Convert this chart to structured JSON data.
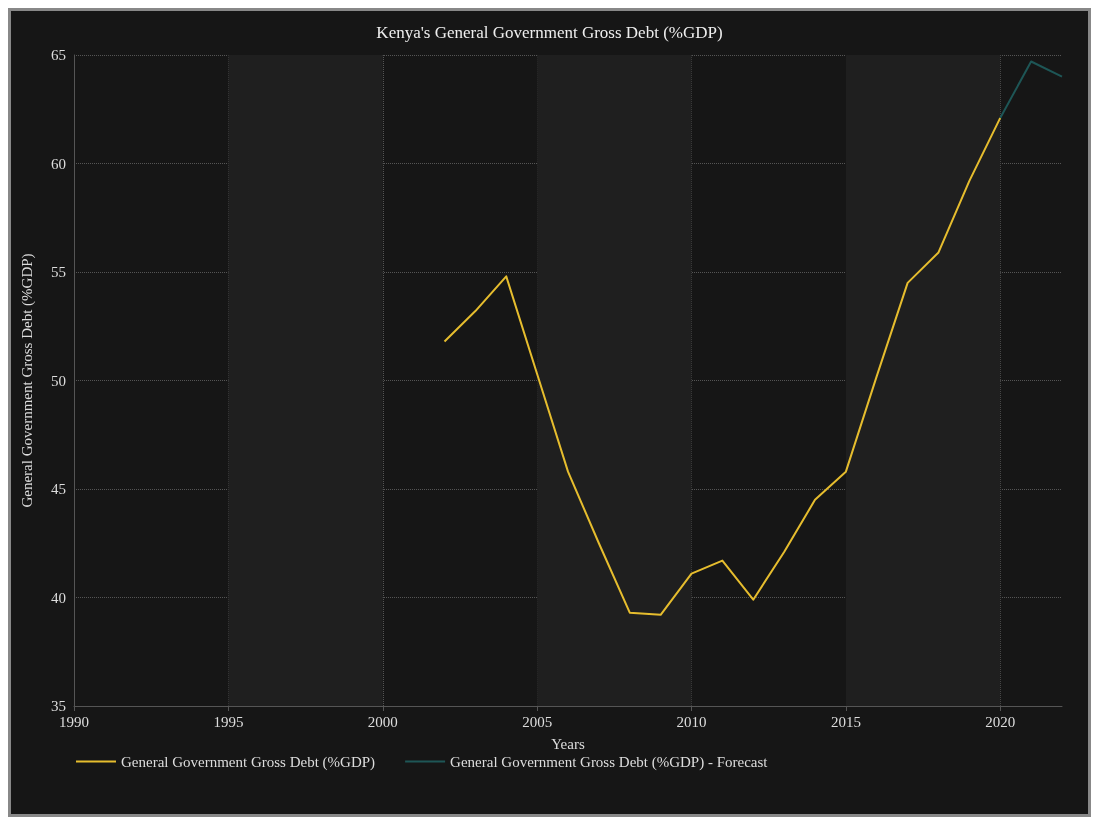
{
  "chart_data": {
    "type": "line",
    "title": "Kenya's General Government Gross Debt (%GDP)",
    "xlabel": "Years",
    "ylabel": "General Government Gross Debt (%GDP)",
    "series": [
      {
        "name": "General Government Gross Debt (%GDP)",
        "color": "#e6bd2e",
        "x": [
          2002,
          2003,
          2004,
          2005,
          2006,
          2007,
          2008,
          2009,
          2010,
          2011,
          2012,
          2013,
          2014,
          2015,
          2016,
          2017,
          2018,
          2019,
          2020
        ],
        "values": [
          51.8,
          53.2,
          54.8,
          50.3,
          45.8,
          42.5,
          39.3,
          39.2,
          41.1,
          41.7,
          39.9,
          42.1,
          44.5,
          45.8,
          50.2,
          54.5,
          55.9,
          59.2,
          62.1
        ]
      },
      {
        "name": "General Government Gross Debt (%GDP) - Forecast",
        "color": "#1e5656",
        "x": [
          2020,
          2021,
          2022
        ],
        "values": [
          62.1,
          64.7,
          64.0
        ]
      }
    ],
    "xlim": [
      1990,
      2022
    ],
    "xticks": [
      1990,
      1995,
      2000,
      2005,
      2010,
      2015,
      2020
    ],
    "ylim": [
      35,
      65
    ],
    "yticks": [
      35,
      40,
      45,
      50,
      55,
      60,
      65
    ],
    "bands": [
      {
        "axis": "x",
        "from": 1995,
        "to": 2000,
        "color": "#1f1f1f"
      },
      {
        "axis": "x",
        "from": 2005,
        "to": 2010,
        "color": "#1f1f1f"
      },
      {
        "axis": "x",
        "from": 2015,
        "to": 2020,
        "color": "#1f1f1f"
      }
    ],
    "grid": true,
    "legend": "bottom",
    "marker": "none",
    "line_style": "solid"
  }
}
